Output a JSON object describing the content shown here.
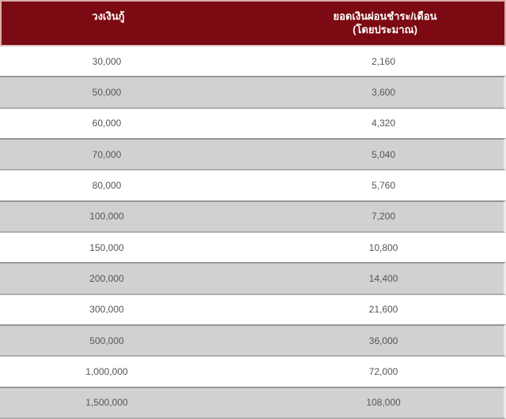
{
  "table": {
    "header": {
      "col1": "วงเงินกู้",
      "col2_line1": "ยอดเงินผ่อนชำระ/เดือน",
      "col2_line2": "(โดยประมาณ)"
    },
    "rows": [
      {
        "loan": "30,000",
        "monthly": "2,160"
      },
      {
        "loan": "50,000",
        "monthly": "3,600"
      },
      {
        "loan": "60,000",
        "monthly": "4,320"
      },
      {
        "loan": "70,000",
        "monthly": "5,040"
      },
      {
        "loan": "80,000",
        "monthly": "5,760"
      },
      {
        "loan": "100,000",
        "monthly": "7,200"
      },
      {
        "loan": "150,000",
        "monthly": "10,800"
      },
      {
        "loan": "200,000",
        "monthly": "14,400"
      },
      {
        "loan": "300,000",
        "monthly": "21,600"
      },
      {
        "loan": "500,000",
        "monthly": "36,000"
      },
      {
        "loan": "1,000,000",
        "monthly": "72,000"
      },
      {
        "loan": "1,500,000",
        "monthly": "108,000"
      }
    ]
  },
  "colors": {
    "header_bg": "#7b0a12",
    "header_border": "#d9abab",
    "header_border_bottom": "#dccaca",
    "header_text": "#ffffff",
    "row_bg_white": "#ffffff",
    "row_bg_gray": "#d1d1d1",
    "row_border_top": "#979797",
    "row_border_bottom": "#aeaeae",
    "row_border_right": "#ececec",
    "text": "#55565a"
  },
  "chart_data": {
    "type": "table",
    "title": "",
    "columns": [
      "วงเงินกู้",
      "ยอดเงินผ่อนชำระ/เดือน (โดยประมาณ)"
    ],
    "rows": [
      [
        "30,000",
        "2,160"
      ],
      [
        "50,000",
        "3,600"
      ],
      [
        "60,000",
        "4,320"
      ],
      [
        "70,000",
        "5,040"
      ],
      [
        "80,000",
        "5,760"
      ],
      [
        "100,000",
        "7,200"
      ],
      [
        "150,000",
        "10,800"
      ],
      [
        "200,000",
        "14,400"
      ],
      [
        "300,000",
        "21,600"
      ],
      [
        "500,000",
        "36,000"
      ],
      [
        "1,000,000",
        "72,000"
      ],
      [
        "1,500,000",
        "108,000"
      ]
    ],
    "layout": {
      "header_style": "dark-maroon background, white bold text, centered",
      "row_style": "alternating white and gray rows, values centered",
      "start_row_background": "white"
    }
  }
}
